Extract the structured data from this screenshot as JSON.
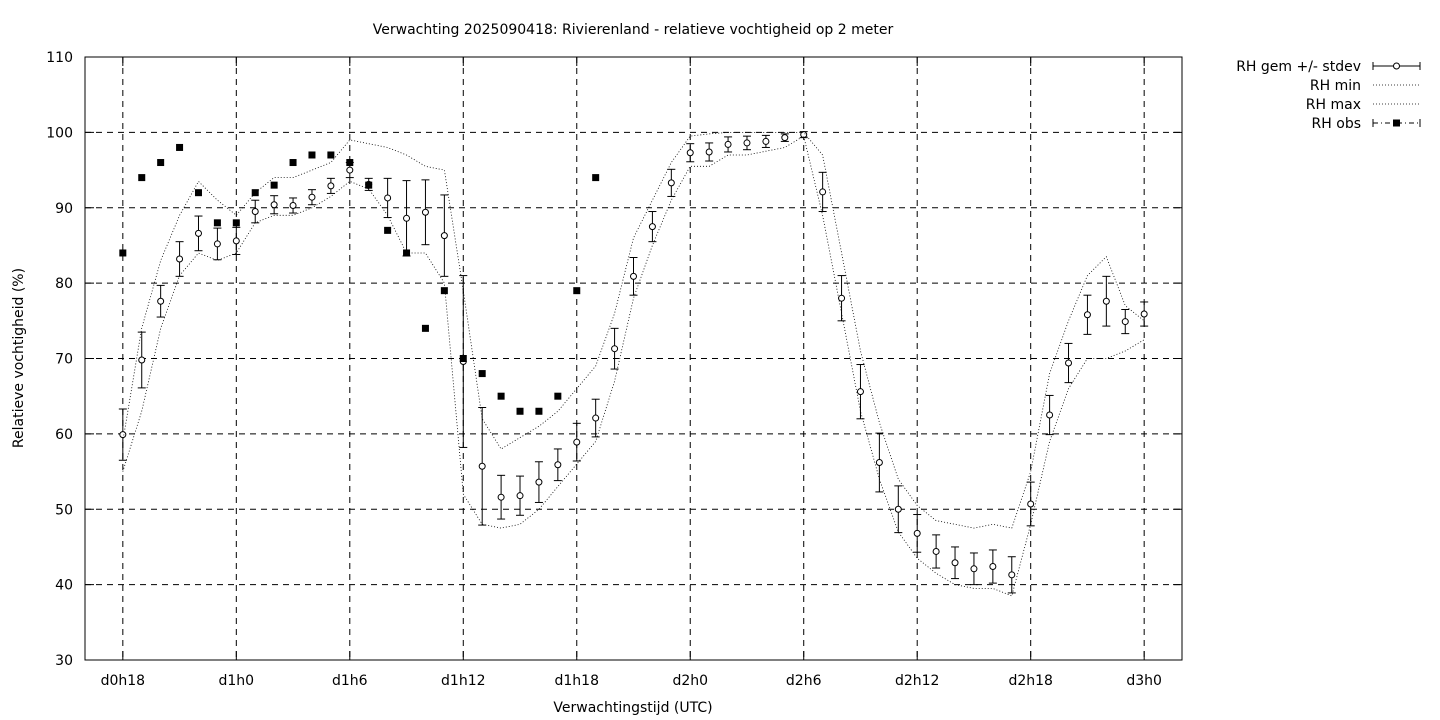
{
  "chart_data": {
    "type": "line",
    "title": "Verwachting 2025090418: Rivierenland - relatieve vochtigheid op 2 meter",
    "xlabel": "Verwachtingstijd (UTC)",
    "ylabel": "Relatieve vochtigheid (%)",
    "xlim": [
      -2,
      56
    ],
    "ylim": [
      30,
      110
    ],
    "x_unit": "forecast hours since d0h18",
    "x_ticks": [
      {
        "x": 0,
        "label": "d0h18"
      },
      {
        "x": 6,
        "label": "d1h0"
      },
      {
        "x": 12,
        "label": "d1h6"
      },
      {
        "x": 18,
        "label": "d1h12"
      },
      {
        "x": 24,
        "label": "d1h18"
      },
      {
        "x": 30,
        "label": "d2h0"
      },
      {
        "x": 36,
        "label": "d2h6"
      },
      {
        "x": 42,
        "label": "d2h12"
      },
      {
        "x": 48,
        "label": "d2h18"
      },
      {
        "x": 54,
        "label": "d3h0"
      }
    ],
    "y_ticks": [
      30,
      40,
      50,
      60,
      70,
      80,
      90,
      100,
      110
    ],
    "grid": true,
    "legend_position": "outside-top-right",
    "legend": [
      "RH gem +/- stdev",
      "RH min",
      "RH max",
      "RH obs"
    ],
    "series": [
      {
        "name": "RH gem +/- stdev",
        "style": "points-errorbars",
        "x": [
          0,
          1,
          2,
          3,
          4,
          5,
          6,
          7,
          8,
          9,
          10,
          11,
          12,
          13,
          14,
          15,
          16,
          17,
          18,
          19,
          20,
          21,
          22,
          23,
          24,
          25,
          26,
          27,
          28,
          29,
          30,
          31,
          32,
          33,
          34,
          35,
          36,
          37,
          38,
          39,
          40,
          41,
          42,
          43,
          44,
          45,
          46,
          47,
          48,
          49,
          50,
          51,
          52,
          53,
          54
        ],
        "mean": [
          59.9,
          69.8,
          77.6,
          83.2,
          86.6,
          85.2,
          85.6,
          89.5,
          90.4,
          90.3,
          91.4,
          92.9,
          95.0,
          93.1,
          91.3,
          88.6,
          89.4,
          86.3,
          69.6,
          55.7,
          51.6,
          51.8,
          53.6,
          55.9,
          58.9,
          62.1,
          71.3,
          80.9,
          87.5,
          93.3,
          97.3,
          97.4,
          98.4,
          98.6,
          98.8,
          99.3,
          99.7,
          92.1,
          78.0,
          65.6,
          56.2,
          50.0,
          46.8,
          44.4,
          42.9,
          42.1,
          42.4,
          41.3,
          50.7,
          62.5,
          69.4,
          75.8,
          77.6,
          74.9,
          75.9
        ],
        "stdev": [
          3.4,
          3.7,
          2.1,
          2.3,
          2.3,
          2.1,
          1.8,
          1.5,
          1.2,
          1.0,
          1.0,
          1.0,
          1.0,
          0.8,
          2.6,
          5.0,
          4.3,
          5.4,
          11.4,
          7.8,
          2.9,
          2.6,
          2.7,
          2.1,
          2.5,
          2.5,
          2.7,
          2.5,
          2.0,
          1.8,
          1.2,
          1.2,
          1.0,
          0.9,
          0.8,
          0.5,
          0.4,
          2.6,
          3.0,
          3.6,
          3.9,
          3.1,
          2.5,
          2.2,
          2.1,
          2.1,
          2.2,
          2.4,
          2.9,
          2.6,
          2.6,
          2.6,
          3.3,
          1.6,
          1.6
        ]
      },
      {
        "name": "RH min",
        "style": "dotted-line",
        "x": [
          0,
          1,
          2,
          3,
          4,
          5,
          6,
          7,
          8,
          9,
          10,
          11,
          12,
          13,
          14,
          15,
          16,
          17,
          18,
          19,
          20,
          21,
          22,
          23,
          24,
          25,
          26,
          27,
          28,
          29,
          30,
          31,
          32,
          33,
          34,
          35,
          36,
          37,
          38,
          39,
          40,
          41,
          42,
          43,
          44,
          45,
          46,
          47,
          48,
          49,
          50,
          51,
          52,
          53,
          54
        ],
        "values": [
          55,
          63,
          74,
          81,
          84,
          83,
          84,
          88,
          89,
          89,
          90,
          91.5,
          93.5,
          92.5,
          89,
          84,
          84,
          80,
          52,
          48,
          47.5,
          48,
          50,
          53,
          56,
          59,
          67,
          78,
          85,
          91,
          95.5,
          95.5,
          97,
          97,
          97.5,
          98,
          99.5,
          89,
          76,
          63,
          54,
          47,
          43.5,
          41.5,
          40,
          39.5,
          39.5,
          38.5,
          48,
          59,
          66,
          70,
          70,
          71,
          72.5
        ]
      },
      {
        "name": "RH max",
        "style": "dotted-line",
        "x": [
          0,
          1,
          2,
          3,
          4,
          5,
          6,
          7,
          8,
          9,
          10,
          11,
          12,
          13,
          14,
          15,
          16,
          17,
          18,
          19,
          20,
          21,
          22,
          23,
          24,
          25,
          26,
          27,
          28,
          29,
          30,
          31,
          32,
          33,
          34,
          35,
          36,
          37,
          38,
          39,
          40,
          41,
          42,
          43,
          44,
          45,
          46,
          47,
          48,
          49,
          50,
          51,
          52,
          53,
          54
        ],
        "values": [
          59,
          74,
          83,
          89,
          93.5,
          91,
          89,
          92,
          94,
          94,
          95,
          96,
          99,
          98.5,
          98,
          97,
          95.5,
          95,
          79,
          62,
          58,
          59.5,
          61,
          63,
          66,
          69,
          76,
          86,
          91,
          96,
          99.5,
          99.8,
          100,
          100,
          100,
          100,
          100,
          97,
          84,
          71,
          61.5,
          54,
          50.5,
          48.5,
          48,
          47.5,
          48,
          47.5,
          55,
          68,
          75,
          81,
          83.5,
          77,
          75
        ]
      },
      {
        "name": "RH obs",
        "style": "filled-squares",
        "x": [
          0,
          1,
          2,
          3,
          4,
          5,
          6,
          7,
          8,
          9,
          10,
          11,
          12,
          13,
          14,
          15,
          16,
          17,
          18,
          19,
          20,
          21,
          22,
          23,
          24,
          25
        ],
        "values": [
          84,
          94,
          96,
          98,
          92,
          88,
          88,
          92,
          93,
          96,
          97,
          97,
          96,
          93,
          87,
          84,
          74,
          79,
          70,
          68,
          65,
          63,
          63,
          65,
          79,
          94
        ]
      }
    ]
  }
}
